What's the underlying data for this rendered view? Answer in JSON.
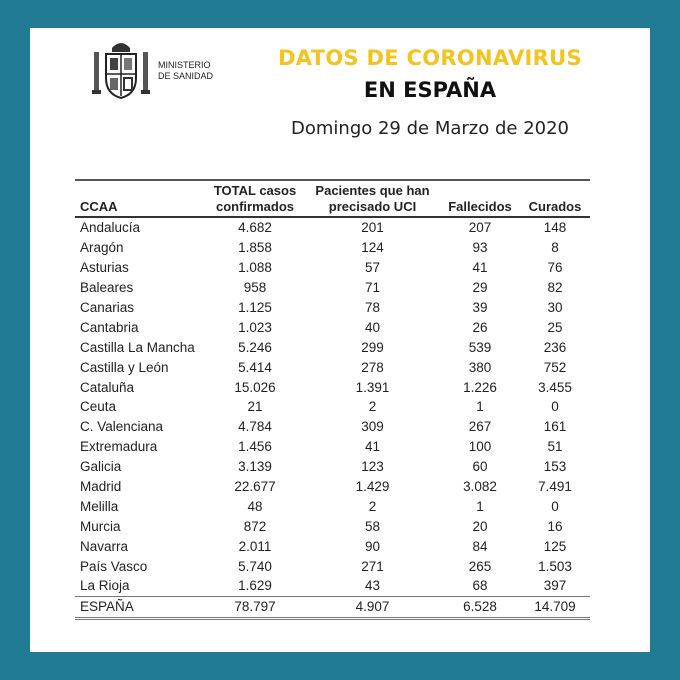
{
  "header": {
    "ministry_line1": "MINISTERIO",
    "ministry_line2": "DE SANIDAD",
    "title_line1": "DATOS DE CORONAVIRUS",
    "title_line2": "EN ESPAÑA",
    "date": "Domingo 29 de Marzo de 2020"
  },
  "colors": {
    "border": "#217b94",
    "title_accent": "#f2c41d"
  },
  "table": {
    "columns": [
      {
        "line1": "",
        "line2": "CCAA"
      },
      {
        "line1": "TOTAL casos",
        "line2": "confirmados"
      },
      {
        "line1": "Pacientes que han",
        "line2": "precisado UCI"
      },
      {
        "line1": "",
        "line2": "Fallecidos"
      },
      {
        "line1": "",
        "line2": "Curados"
      }
    ],
    "rows": [
      [
        "Andalucía",
        "4.682",
        "201",
        "207",
        "148"
      ],
      [
        "Aragón",
        "1.858",
        "124",
        "93",
        "8"
      ],
      [
        "Asturias",
        "1.088",
        "57",
        "41",
        "76"
      ],
      [
        "Baleares",
        "958",
        "71",
        "29",
        "82"
      ],
      [
        "Canarias",
        "1.125",
        "78",
        "39",
        "30"
      ],
      [
        "Cantabria",
        "1.023",
        "40",
        "26",
        "25"
      ],
      [
        "Castilla La Mancha",
        "5.246",
        "299",
        "539",
        "236"
      ],
      [
        "Castilla y León",
        "5.414",
        "278",
        "380",
        "752"
      ],
      [
        "Cataluña",
        "15.026",
        "1.391",
        "1.226",
        "3.455"
      ],
      [
        "Ceuta",
        "21",
        "2",
        "1",
        "0"
      ],
      [
        "C. Valenciana",
        "4.784",
        "309",
        "267",
        "161"
      ],
      [
        "Extremadura",
        "1.456",
        "41",
        "100",
        "51"
      ],
      [
        "Galicia",
        "3.139",
        "123",
        "60",
        "153"
      ],
      [
        "Madrid",
        "22.677",
        "1.429",
        "3.082",
        "7.491"
      ],
      [
        "Melilla",
        "48",
        "2",
        "1",
        "0"
      ],
      [
        "Murcia",
        "872",
        "58",
        "20",
        "16"
      ],
      [
        "Navarra",
        "2.011",
        "90",
        "84",
        "125"
      ],
      [
        "País Vasco",
        "5.740",
        "271",
        "265",
        "1.503"
      ],
      [
        "La Rioja",
        "1.629",
        "43",
        "68",
        "397"
      ]
    ],
    "total": [
      "ESPAÑA",
      "78.797",
      "4.907",
      "6.528",
      "14.709"
    ]
  }
}
